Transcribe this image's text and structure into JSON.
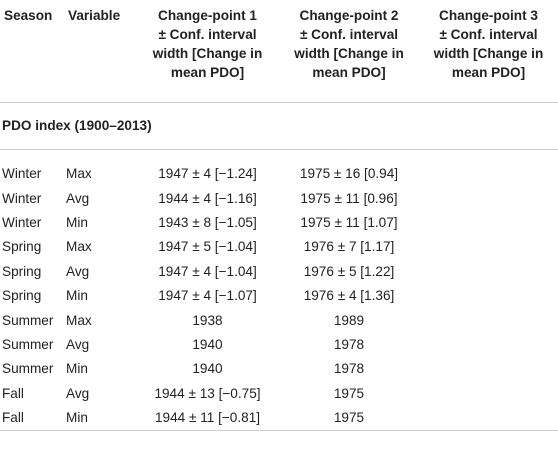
{
  "table": {
    "headers": {
      "season": "Season",
      "variable": "Variable",
      "cp1": [
        "Change-point 1",
        "± Conf. interval",
        "width [Change in",
        "mean PDO]"
      ],
      "cp2": [
        "Change-point 2",
        "± Conf. interval",
        "width [Change in",
        "mean PDO]"
      ],
      "cp3": [
        "Change-point 3",
        "± Conf. interval",
        "width [Change in",
        "mean PDO]"
      ]
    },
    "section_title": "PDO index (1900–2013)",
    "rows": [
      {
        "season": "Winter",
        "variable": "Max",
        "cp1": "1947 ± 4 [−1.24]",
        "cp2": "1975 ± 16 [0.94]",
        "cp3": ""
      },
      {
        "season": "Winter",
        "variable": "Avg",
        "cp1": "1944 ± 4 [−1.16]",
        "cp2": "1975 ± 11 [0.96]",
        "cp3": ""
      },
      {
        "season": "Winter",
        "variable": "Min",
        "cp1": "1943 ± 8 [−1.05]",
        "cp2": "1975 ± 11 [1.07]",
        "cp3": ""
      },
      {
        "season": "Spring",
        "variable": "Max",
        "cp1": "1947 ± 5 [−1.04]",
        "cp2": "1976 ± 7 [1.17]",
        "cp3": ""
      },
      {
        "season": "Spring",
        "variable": "Avg",
        "cp1": "1947 ± 4 [−1.04]",
        "cp2": "1976 ± 5 [1.22]",
        "cp3": ""
      },
      {
        "season": "Spring",
        "variable": "Min",
        "cp1": "1947 ± 4 [−1.07]",
        "cp2": "1976 ± 4 [1.36]",
        "cp3": ""
      },
      {
        "season": "Summer",
        "variable": "Max",
        "cp1": "1938",
        "cp2": "1989",
        "cp3": ""
      },
      {
        "season": "Summer",
        "variable": "Avg",
        "cp1": "1940",
        "cp2": "1978",
        "cp3": ""
      },
      {
        "season": "Summer",
        "variable": "Min",
        "cp1": "1940",
        "cp2": "1978",
        "cp3": ""
      },
      {
        "season": "Fall",
        "variable": "Avg",
        "cp1": "1944 ± 13 [−0.75]",
        "cp2": "1975",
        "cp3": ""
      },
      {
        "season": "Fall",
        "variable": "Min",
        "cp1": "1944 ± 11 [−0.81]",
        "cp2": "1975",
        "cp3": ""
      }
    ]
  }
}
